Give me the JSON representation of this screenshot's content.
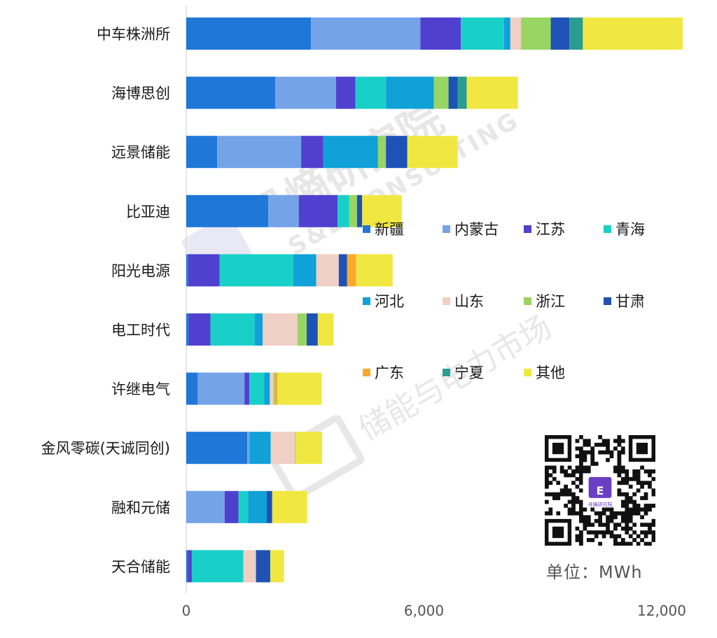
{
  "chart_data": {
    "type": "bar",
    "orientation": "horizontal",
    "stacked": true,
    "categories": [
      "中车株洲所",
      "海博思创",
      "远景储能",
      "比亚迪",
      "阳光电源",
      "电工时代",
      "许继电气",
      "金风零碳(天诚同创)",
      "融和元储",
      "天合储能"
    ],
    "xlim": [
      0,
      13000
    ],
    "xticks": [
      {
        "value": 0,
        "label": "0"
      },
      {
        "value": 6000,
        "label": "6,000"
      },
      {
        "value": 12000,
        "label": "12,000"
      }
    ],
    "unit": "单位：MWh",
    "legend_position": "right",
    "series": [
      {
        "name": "新疆",
        "color": "#1f77d8",
        "values": [
          3150,
          2250,
          780,
          2070,
          50,
          60,
          290,
          1540,
          0,
          40
        ]
      },
      {
        "name": "内蒙古",
        "color": "#74a3e8",
        "values": [
          2760,
          1530,
          2120,
          770,
          0,
          0,
          1180,
          60,
          970,
          0
        ]
      },
      {
        "name": "江苏",
        "color": "#5040d0",
        "values": [
          1020,
          490,
          560,
          980,
          790,
          550,
          120,
          0,
          350,
          100
        ]
      },
      {
        "name": "青海",
        "color": "#19d0c8",
        "values": [
          1090,
          770,
          0,
          290,
          1860,
          1120,
          380,
          0,
          240,
          1300
        ]
      },
      {
        "name": "河北",
        "color": "#0fa1d8",
        "values": [
          160,
          1210,
          1380,
          0,
          580,
          200,
          140,
          530,
          470,
          0
        ]
      },
      {
        "name": "山东",
        "color": "#f0cfc4",
        "values": [
          270,
          0,
          0,
          0,
          570,
          880,
          90,
          620,
          0,
          320
        ]
      },
      {
        "name": "浙江",
        "color": "#99d562",
        "values": [
          750,
          370,
          200,
          200,
          0,
          230,
          40,
          20,
          0,
          0
        ]
      },
      {
        "name": "甘肃",
        "color": "#1e52b6",
        "values": [
          470,
          230,
          540,
          130,
          210,
          280,
          0,
          0,
          140,
          360
        ]
      },
      {
        "name": "广东",
        "color": "#fba92c",
        "values": [
          0,
          0,
          0,
          0,
          230,
          0,
          60,
          0,
          0,
          0
        ]
      },
      {
        "name": "宁夏",
        "color": "#2b9c90",
        "values": [
          340,
          230,
          0,
          0,
          0,
          0,
          0,
          0,
          0,
          0
        ]
      },
      {
        "name": "其他",
        "color": "#f0e840",
        "values": [
          2520,
          1290,
          1270,
          1000,
          920,
          400,
          1120,
          660,
          880,
          350
        ]
      }
    ]
  },
  "watermarks": {
    "brand_cn": "寻熵研究院",
    "brand_en": "S&E CONSULTING",
    "sub_brand": "储能与电力市场",
    "qr_center_text": "寻熵研究院"
  }
}
